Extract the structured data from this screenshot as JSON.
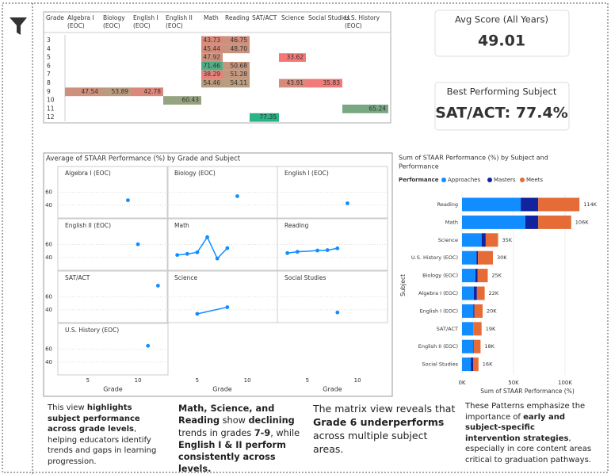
{
  "matrix": {
    "header": [
      "Grade",
      "Algebra I (EOC)",
      "Biology (EOC)",
      "English I (EOC)",
      "English II (EOC)",
      "Math",
      "Reading",
      "SAT/ACT",
      "Science",
      "Social Studies",
      "U.S. History (EOC)"
    ],
    "rows": [
      [
        "3",
        null,
        null,
        null,
        null,
        "43.73",
        "46.75",
        null,
        null,
        null,
        null
      ],
      [
        "4",
        null,
        null,
        null,
        null,
        "45.44",
        "48.70",
        null,
        null,
        null,
        null
      ],
      [
        "5",
        null,
        null,
        null,
        null,
        "47.92",
        null,
        null,
        "33.62",
        null,
        null
      ],
      [
        "6",
        null,
        null,
        null,
        null,
        "71.46",
        "50.68",
        null,
        null,
        null,
        null
      ],
      [
        "7",
        null,
        null,
        null,
        null,
        "38.29",
        "51.28",
        null,
        null,
        null,
        null
      ],
      [
        "8",
        null,
        null,
        null,
        null,
        "54.46",
        "54.11",
        null,
        "43.91",
        "35.83",
        null
      ],
      [
        "9",
        "47.54",
        "53.89",
        "42.78",
        null,
        null,
        null,
        null,
        null,
        null,
        null
      ],
      [
        "10",
        null,
        null,
        null,
        "60.43",
        null,
        null,
        null,
        null,
        null,
        null
      ],
      [
        "11",
        null,
        null,
        null,
        null,
        null,
        null,
        null,
        null,
        null,
        "65.24"
      ],
      [
        "12",
        null,
        null,
        null,
        null,
        null,
        null,
        "77.35",
        null,
        null,
        null
      ]
    ]
  },
  "cards": [
    {
      "label": "Avg Score (All Years)",
      "value": "49.01"
    },
    {
      "label": "Best Performing Subject",
      "value": "SAT/ACT: 77.4%"
    }
  ],
  "chart_data": [
    {
      "type": "line",
      "title": "Average of STAAR Performance (%) by Grade and Subject",
      "xlabel": "Grade",
      "color": "#118dff",
      "xlim": [
        2,
        13
      ],
      "xticks": [
        5,
        10
      ],
      "ylim": [
        20,
        100
      ],
      "yticks": [
        40,
        60
      ],
      "grid": true,
      "panels": [
        {
          "name": "Algebra I (EOC)",
          "x": [
            9
          ],
          "values": [
            47.54
          ]
        },
        {
          "name": "Biology (EOC)",
          "x": [
            9
          ],
          "values": [
            53.89
          ]
        },
        {
          "name": "English I (EOC)",
          "x": [
            9
          ],
          "values": [
            42.78
          ]
        },
        {
          "name": "English II (EOC)",
          "x": [
            10
          ],
          "values": [
            60.43
          ]
        },
        {
          "name": "Math",
          "x": [
            3,
            4,
            5,
            6,
            7,
            8
          ],
          "values": [
            43.73,
            45.44,
            47.92,
            71.46,
            38.29,
            54.46
          ]
        },
        {
          "name": "Reading",
          "x": [
            3,
            4,
            6,
            7,
            8
          ],
          "values": [
            46.75,
            48.7,
            50.68,
            51.28,
            54.11
          ]
        },
        {
          "name": "SAT/ACT",
          "x": [
            12
          ],
          "values": [
            77.35
          ]
        },
        {
          "name": "Science",
          "x": [
            5,
            8
          ],
          "values": [
            33.62,
            43.91
          ]
        },
        {
          "name": "Social Studies",
          "x": [
            8
          ],
          "values": [
            35.83
          ]
        },
        {
          "name": "U.S. History (EOC)",
          "x": [
            11
          ],
          "values": [
            65.24
          ]
        }
      ]
    },
    {
      "type": "stacked-hbar",
      "title": "Sum of STAAR Performance (%) by Subject and Performance",
      "legend_title": "Performance",
      "xlabel": "Sum of STAAR Performance (%)",
      "ylabel": "Subject",
      "categories": [
        "Reading",
        "Math",
        "Science",
        "U.S. History (EOC)",
        "Biology (EOC)",
        "Algebra I (EOC)",
        "English I (EOC)",
        "SAT/ACT",
        "English II (EOC)",
        "Social Studies"
      ],
      "series": [
        {
          "name": "Approaches",
          "color": "#118dff",
          "values": [
            57000,
            61500,
            19000,
            14000,
            13000,
            11500,
            11000,
            11000,
            11000,
            8500
          ]
        },
        {
          "name": "Masters",
          "color": "#12239e",
          "values": [
            17000,
            12500,
            4000,
            1500,
            2000,
            3000,
            1000,
            0,
            500,
            2500
          ]
        },
        {
          "name": "Meets",
          "color": "#e66c37",
          "values": [
            40000,
            32000,
            12000,
            14500,
            10000,
            7500,
            8000,
            8000,
            6500,
            5000
          ]
        }
      ],
      "totals": [
        114000,
        106000,
        35000,
        30000,
        25000,
        22000,
        20000,
        19000,
        18000,
        16000
      ],
      "total_labels": [
        "114K",
        "106K",
        "35K",
        "30K",
        "25K",
        "22K",
        "20K",
        "19K",
        "18K",
        "16K"
      ],
      "xlim": [
        0,
        140000
      ],
      "xticks": [
        {
          "value": 0,
          "label": "0K"
        },
        {
          "value": 50000,
          "label": "50K"
        },
        {
          "value": 100000,
          "label": "100K"
        }
      ]
    }
  ],
  "notes": [
    [
      {
        "text": "This view ",
        "bold": false
      },
      {
        "text": "highlights subject performance across grade levels",
        "bold": true
      },
      {
        "text": ", helping educators identify trends and gaps in learning progression.",
        "bold": false
      }
    ],
    [
      {
        "text": "Math, Science, and Reading",
        "bold": true
      },
      {
        "text": " show ",
        "bold": false
      },
      {
        "text": "declining",
        "bold": true
      },
      {
        "text": " trends in grades ",
        "bold": false
      },
      {
        "text": "7-9",
        "bold": true
      },
      {
        "text": ", while ",
        "bold": false
      },
      {
        "text": "English I & II perform consistently across levels.",
        "bold": true
      }
    ],
    [
      {
        "text": "The matrix view reveals that ",
        "bold": false
      },
      {
        "text": "Grade 6 underperforms",
        "bold": true
      },
      {
        "text": " across multiple subject areas.",
        "bold": false
      }
    ],
    [
      {
        "text": "These Patterns emphasize the importance of ",
        "bold": false
      },
      {
        "text": "early and subject-specific intervention strategies",
        "bold": true
      },
      {
        "text": ", especially in core content areas critical to graduation pathways.",
        "bold": false
      }
    ]
  ]
}
